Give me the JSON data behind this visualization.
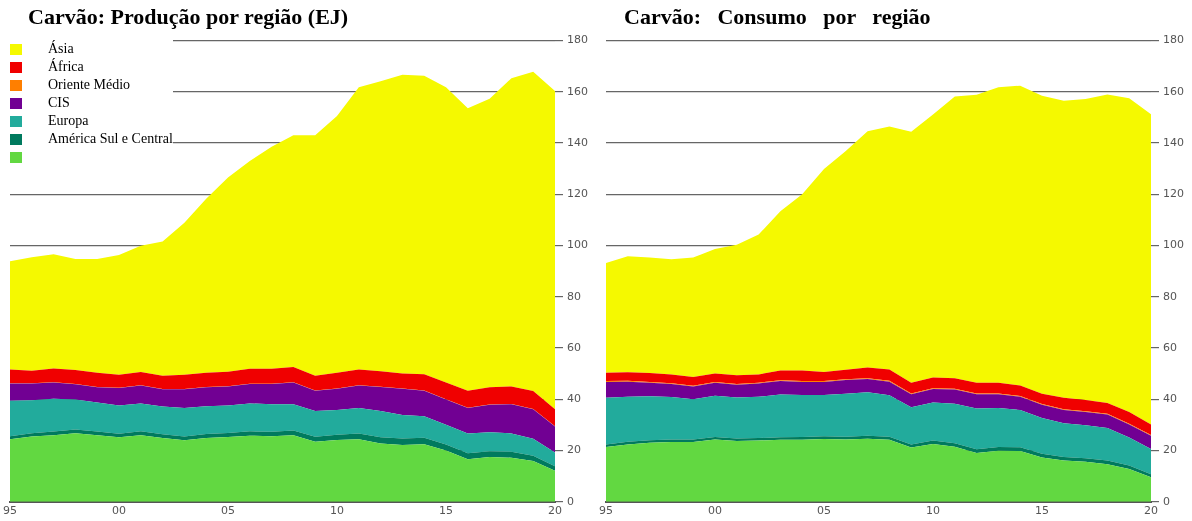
{
  "chart_data": [
    {
      "type": "area",
      "title": "Carvão: Produção por região (EJ)",
      "stacked": true,
      "grid": "y",
      "legend": "top left",
      "x": [
        1995,
        1996,
        1997,
        1998,
        1999,
        2000,
        2001,
        2002,
        2003,
        2004,
        2005,
        2006,
        2007,
        2008,
        2009,
        2010,
        2011,
        2012,
        2013,
        2014,
        2015,
        2016,
        2017,
        2018,
        2019,
        2020
      ],
      "xlim": [
        1995,
        2020
      ],
      "xticks": [
        {
          "value": 1995,
          "label": "95"
        },
        {
          "value": 2000,
          "label": "00"
        },
        {
          "value": 2005,
          "label": "05"
        },
        {
          "value": 2010,
          "label": "10"
        },
        {
          "value": 2015,
          "label": "15"
        },
        {
          "value": 2020,
          "label": "20"
        }
      ],
      "ylim": [
        0,
        180
      ],
      "yticks": [
        0,
        20,
        40,
        60,
        80,
        100,
        120,
        140,
        160,
        180
      ],
      "series": [
        {
          "color": "#62d841",
          "values": [
            24.4,
            25.5,
            26,
            26.8,
            26,
            25.2,
            26,
            24.9,
            24,
            24.9,
            25.3,
            25.8,
            25.6,
            26,
            23.4,
            24.1,
            24.4,
            22.8,
            22.2,
            22.5,
            20,
            16.6,
            17.5,
            17.2,
            15.9,
            12.1
          ]
        },
        {
          "name": "América Sul e Central",
          "color": "#007a5e",
          "values": [
            1.2,
            1.3,
            1.4,
            1.4,
            1.4,
            1.4,
            1.5,
            1.5,
            1.5,
            1.6,
            1.6,
            1.7,
            1.7,
            1.8,
            2.0,
            2.1,
            2.3,
            2.4,
            2.5,
            2.5,
            2.4,
            2.3,
            2.2,
            2.3,
            2.1,
            1.8
          ]
        },
        {
          "name": "Europa",
          "color": "#22ab9c",
          "values": [
            13.8,
            12.8,
            12.8,
            11.7,
            11.4,
            11.0,
            10.9,
            10.8,
            11.1,
            10.8,
            10.7,
            10.9,
            10.8,
            10.3,
            10.0,
            9.6,
            9.9,
            10.2,
            9.2,
            8.4,
            7.7,
            7.8,
            7.4,
            7.2,
            6.6,
            5.3
          ]
        },
        {
          "name": "CIS",
          "color": "#710093",
          "values": [
            6.8,
            6.6,
            6.4,
            6.0,
            5.9,
            6.8,
            7.0,
            6.7,
            7.3,
            7.4,
            7.4,
            7.6,
            7.9,
            8.5,
            7.9,
            8.3,
            8.8,
            9.4,
            10.2,
            9.9,
            9.8,
            9.9,
            10.8,
            11.4,
            11.5,
            10.2
          ]
        },
        {
          "name": "Oriente Médio",
          "color": "#ff7f00",
          "values": [
            0.1,
            0.1,
            0.1,
            0.1,
            0.1,
            0.1,
            0.1,
            0.1,
            0.1,
            0.1,
            0.1,
            0.1,
            0.1,
            0.1,
            0.1,
            0.1,
            0.1,
            0.1,
            0.1,
            0.1,
            0.1,
            0.1,
            0.1,
            0.1,
            0.1,
            0.1
          ]
        },
        {
          "name": "África",
          "color": "#f00000",
          "values": [
            5.3,
            4.8,
            5.3,
            5.4,
            5.6,
            5.1,
            5.2,
            5.2,
            5.6,
            5.6,
            5.7,
            5.8,
            5.8,
            5.9,
            5.8,
            6.2,
            6.1,
            6.1,
            5.9,
            6.4,
            6.6,
            6.6,
            6.7,
            6.8,
            7.0,
            6.6
          ]
        },
        {
          "name": "Ásia",
          "color": "#f5f900",
          "values": [
            42.3,
            44.3,
            44.6,
            43.4,
            44.4,
            46.7,
            49.2,
            52.4,
            59.3,
            67.9,
            75.8,
            81.1,
            86.7,
            90.5,
            93.9,
            100.2,
            110.2,
            113.1,
            116.6,
            116.5,
            115.2,
            110.3,
            112.6,
            120.3,
            124.6,
            124.2
          ]
        }
      ]
    },
    {
      "type": "area",
      "title": "Carvão:   Consumo   por   região",
      "stacked": true,
      "grid": "y",
      "x": [
        1995,
        1996,
        1997,
        1998,
        1999,
        2000,
        2001,
        2002,
        2003,
        2004,
        2005,
        2006,
        2007,
        2008,
        2009,
        2010,
        2011,
        2012,
        2013,
        2014,
        2015,
        2016,
        2017,
        2018,
        2019,
        2020
      ],
      "xlim": [
        1995,
        2020
      ],
      "xticks": [
        {
          "value": 1995,
          "label": "95"
        },
        {
          "value": 2000,
          "label": "00"
        },
        {
          "value": 2005,
          "label": "05"
        },
        {
          "value": 2010,
          "label": "10"
        },
        {
          "value": 2015,
          "label": "15"
        },
        {
          "value": 2020,
          "label": "20"
        }
      ],
      "ylim": [
        0,
        180
      ],
      "yticks": [
        0,
        20,
        40,
        60,
        80,
        100,
        120,
        140,
        160,
        180
      ],
      "series": [
        {
          "color": "#62d841",
          "values": [
            21.4,
            22.4,
            23,
            23.3,
            23.3,
            24.3,
            23.7,
            23.9,
            24.2,
            24.2,
            24.5,
            24.3,
            24.6,
            24.2,
            21.2,
            22.6,
            21.5,
            19,
            19.9,
            19.8,
            17.3,
            16.1,
            15.6,
            14.7,
            12.8,
            9.6
          ]
        },
        {
          "color": "#007a5e",
          "values": [
            1.0,
            1.0,
            1.0,
            1.0,
            1.0,
            1.0,
            1.0,
            1.0,
            1.0,
            1.1,
            1.1,
            1.1,
            1.2,
            1.2,
            1.2,
            1.3,
            1.4,
            1.5,
            1.5,
            1.5,
            1.5,
            1.4,
            1.4,
            1.4,
            1.4,
            1.2
          ]
        },
        {
          "color": "#22ab9c",
          "values": [
            18.2,
            17.6,
            17.2,
            16.6,
            15.7,
            16.1,
            16,
            16.1,
            16.7,
            16.4,
            16.1,
            16.8,
            17,
            16.2,
            14.5,
            14.9,
            15.4,
            15.9,
            15.2,
            14.5,
            13.9,
            13.2,
            12.9,
            12.7,
            10.9,
            9.8
          ]
        },
        {
          "color": "#710093",
          "values": [
            6.2,
            5.9,
            5.3,
            5.1,
            5,
            5.1,
            5,
            5.2,
            5.2,
            5.1,
            5.1,
            5.3,
            5.1,
            5.3,
            5.1,
            5.2,
            5.5,
            5.6,
            5.4,
            5.2,
            5.2,
            5.1,
            5.1,
            5.3,
            5.1,
            5.2
          ]
        },
        {
          "color": "#ff7f00",
          "values": [
            0.3,
            0.3,
            0.3,
            0.3,
            0.3,
            0.3,
            0.3,
            0.3,
            0.3,
            0.3,
            0.3,
            0.3,
            0.3,
            0.3,
            0.3,
            0.3,
            0.3,
            0.3,
            0.3,
            0.3,
            0.3,
            0.3,
            0.3,
            0.3,
            0.3,
            0.3
          ]
        },
        {
          "color": "#f00000",
          "values": [
            3.3,
            3.4,
            3.5,
            3.4,
            3.4,
            3.3,
            3.4,
            3.2,
            3.8,
            4.1,
            3.6,
            3.7,
            4.2,
            4.4,
            4.2,
            4.2,
            4.1,
            4.2,
            4.2,
            4.1,
            4,
            4.5,
            4.4,
            4.2,
            4.5,
            4.1
          ]
        },
        {
          "color": "#f5f900",
          "values": [
            42.8,
            45.2,
            45,
            45,
            46.6,
            48.6,
            50.9,
            54.6,
            62.2,
            68.8,
            79.2,
            85.4,
            92.2,
            94.9,
            97.9,
            102.7,
            110,
            112.4,
            115.3,
            117,
            116.3,
            115.9,
            117.5,
            120.4,
            122.5,
            121.1
          ]
        }
      ]
    }
  ]
}
